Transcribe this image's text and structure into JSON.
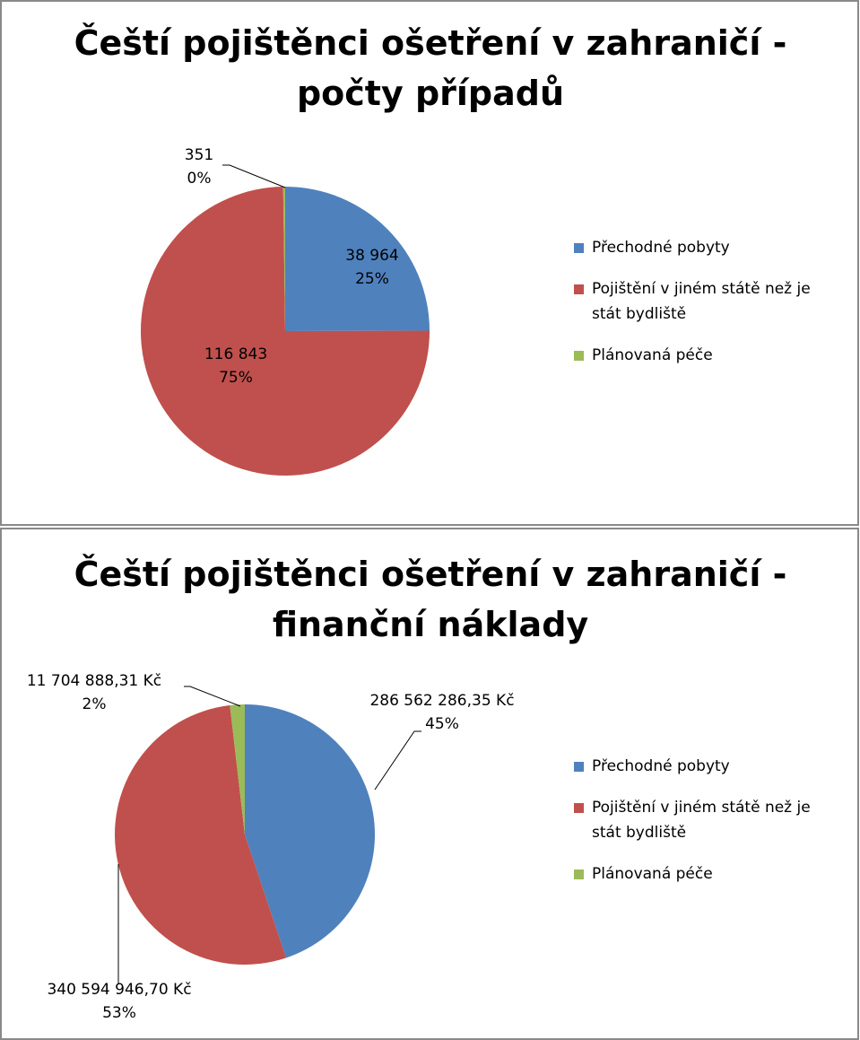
{
  "chart_data": [
    {
      "type": "pie",
      "title": "Čeští pojištěnci ošetření v zahraničí - počty případů",
      "categories": [
        "Přechodné pobyty",
        "Pojištění v jiném státě než je stát bydliště",
        "Plánovaná péče"
      ],
      "values": [
        38964,
        116843,
        351
      ],
      "value_labels": [
        "38 964",
        "116 843",
        "351"
      ],
      "percent_labels": [
        "25%",
        "75%",
        "0%"
      ],
      "colors": [
        "#4f81bd",
        "#c0504d",
        "#9bbb59"
      ],
      "legend": "right"
    },
    {
      "type": "pie",
      "title": "Čeští pojištěnci ošetření v zahraničí - finanční náklady",
      "categories": [
        "Přechodné pobyty",
        "Pojištění v jiném státě než je stát bydliště",
        "Plánovaná péče"
      ],
      "values": [
        286562286.35,
        340594946.7,
        11704888.31
      ],
      "value_labels": [
        "286 562 286,35 Kč",
        "340 594 946,70 Kč",
        "11 704 888,31 Kč"
      ],
      "percent_labels": [
        "45%",
        "53%",
        "2%"
      ],
      "colors": [
        "#4f81bd",
        "#c0504d",
        "#9bbb59"
      ],
      "legend": "right"
    }
  ]
}
